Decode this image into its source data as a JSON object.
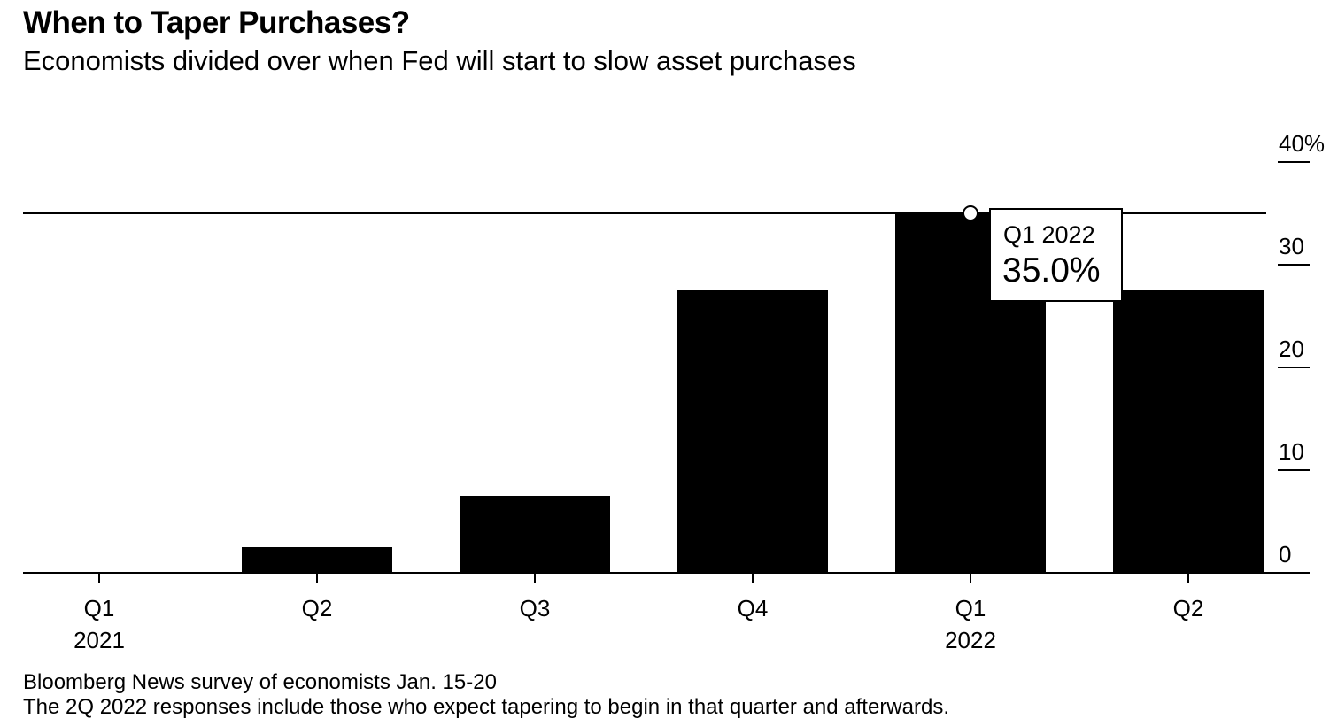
{
  "header": {
    "title": "When to Taper Purchases?",
    "subtitle": "Economists divided over when Fed will start to slow asset purchases"
  },
  "tooltip": {
    "label": "Q1 2022",
    "value": "35.0%"
  },
  "footnotes": [
    "Bloomberg News survey of economists Jan. 15-20",
    "The 2Q 2022 responses include those who expect tapering to begin in that quarter and afterwards."
  ],
  "chart_data": {
    "type": "bar",
    "title": "When to Taper Purchases?",
    "subtitle": "Economists divided over when Fed will start to slow asset purchases",
    "categories": [
      "Q1 2021",
      "Q2 2021",
      "Q3 2021",
      "Q4 2021",
      "Q1 2022",
      "Q2 2022"
    ],
    "x_tick_labels": [
      {
        "quarter": "Q1",
        "year": "2021"
      },
      {
        "quarter": "Q2",
        "year": ""
      },
      {
        "quarter": "Q3",
        "year": ""
      },
      {
        "quarter": "Q4",
        "year": ""
      },
      {
        "quarter": "Q1",
        "year": "2022"
      },
      {
        "quarter": "Q2",
        "year": ""
      }
    ],
    "values": [
      0,
      2.5,
      7.5,
      27.5,
      35.0,
      27.5
    ],
    "ylim": [
      0,
      40
    ],
    "y_ticks": [
      0,
      10,
      20,
      30,
      40
    ],
    "y_tick_labels": [
      "0",
      "10",
      "20",
      "30",
      "40%"
    ],
    "y_axis_side": "right",
    "reference_line": 35.0,
    "highlighted_category": "Q1 2022",
    "grid": false,
    "xlabel": "",
    "ylabel": "",
    "colors": {
      "bar": "#000000",
      "axis": "#000000",
      "background": "#ffffff"
    }
  }
}
